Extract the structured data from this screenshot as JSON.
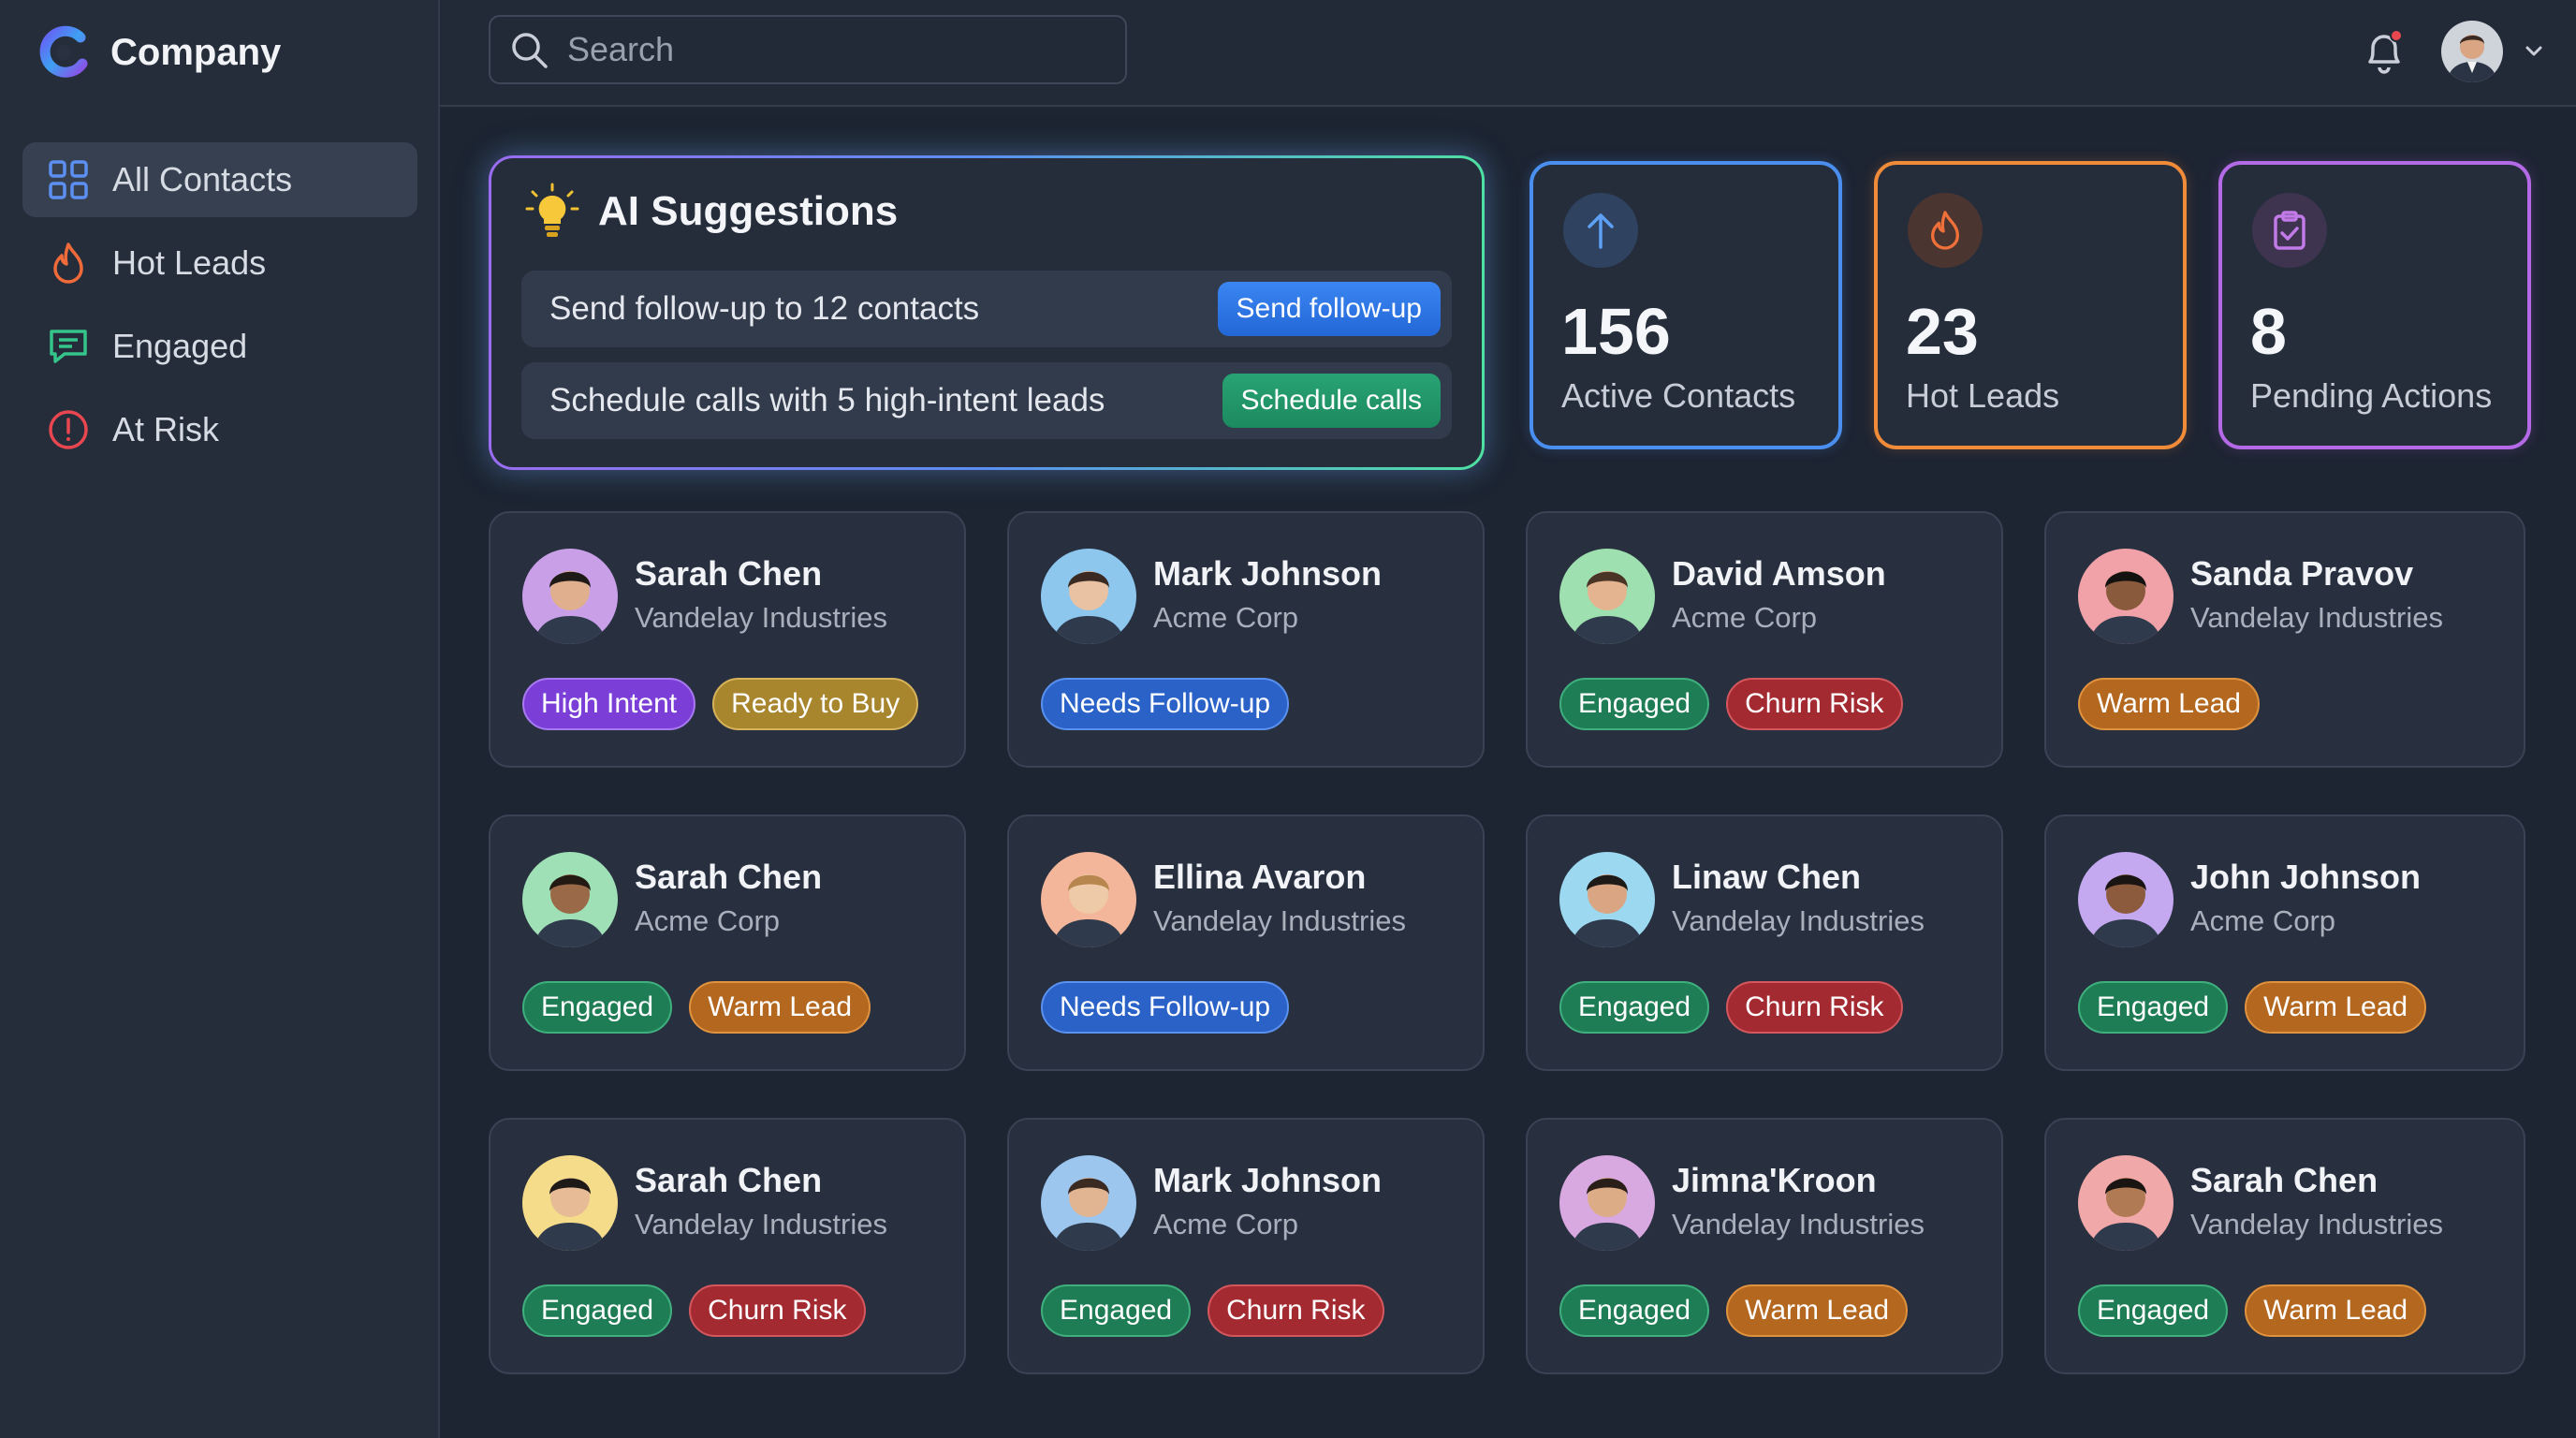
{
  "brand": {
    "name": "Company"
  },
  "sidebar": {
    "items": [
      {
        "label": "All Contacts",
        "icon": "grid-icon",
        "active": true
      },
      {
        "label": "Hot Leads",
        "icon": "flame-icon",
        "active": false
      },
      {
        "label": "Engaged",
        "icon": "chat-icon",
        "active": false
      },
      {
        "label": "At Risk",
        "icon": "alert-icon",
        "active": false
      }
    ]
  },
  "search": {
    "placeholder": "Search",
    "value": ""
  },
  "header": {
    "notification_dot": true
  },
  "ai": {
    "title": "AI Suggestions",
    "suggestions": [
      {
        "text": "Send follow-up to 12 contacts",
        "action": "Send follow-up"
      },
      {
        "text": "Schedule calls with 5 high-intent leads",
        "action": "Schedule calls"
      }
    ]
  },
  "stats": [
    {
      "value": "156",
      "label": "Active Contacts",
      "icon": "arrow-up-icon",
      "color": "#4a8ff0"
    },
    {
      "value": "23",
      "label": "Hot Leads",
      "icon": "flame-icon",
      "color": "#f08b3a"
    },
    {
      "value": "8",
      "label": "Pending Actions",
      "icon": "clipboard-check-icon",
      "color": "#b46ae6"
    }
  ],
  "contacts": [
    {
      "name": "Sarah Chen",
      "company": "Vandelay Industries",
      "tags": [
        "High Intent",
        "Ready to Buy"
      ]
    },
    {
      "name": "Mark Johnson",
      "company": "Acme Corp",
      "tags": [
        "Needs Follow-up"
      ]
    },
    {
      "name": "David Amson",
      "company": "Acme Corp",
      "tags": [
        "Engaged",
        "Churn Risk"
      ]
    },
    {
      "name": "Sanda Pravov",
      "company": "Vandelay Industries",
      "tags": [
        "Warm Lead"
      ]
    },
    {
      "name": "Sarah Chen",
      "company": "Acme Corp",
      "tags": [
        "Engaged",
        "Warm Lead"
      ]
    },
    {
      "name": "Ellina Avaron",
      "company": "Vandelay Industries",
      "tags": [
        "Needs Follow-up"
      ]
    },
    {
      "name": "Linaw Chen",
      "company": "Vandelay Industries",
      "tags": [
        "Engaged",
        "Churn Risk"
      ]
    },
    {
      "name": "John Johnson",
      "company": "Acme Corp",
      "tags": [
        "Engaged",
        "Warm Lead"
      ]
    },
    {
      "name": "Sarah Chen",
      "company": "Vandelay Industries",
      "tags": [
        "Engaged",
        "Churn Risk"
      ]
    },
    {
      "name": "Mark Johnson",
      "company": "Acme Corp",
      "tags": [
        "Engaged",
        "Churn Risk"
      ]
    },
    {
      "name": "Jimna'Kroon",
      "company": "Vandelay Industries",
      "tags": [
        "Engaged",
        "Warm Lead"
      ]
    },
    {
      "name": "Sarah Chen",
      "company": "Vandelay Industries",
      "tags": [
        "Engaged",
        "Warm Lead"
      ]
    }
  ],
  "tag_colors": {
    "High Intent": {
      "bg": "#7b3fd8",
      "border": "#a77af0"
    },
    "Ready to Buy": {
      "bg": "#a8862e",
      "border": "#d6b25a"
    },
    "Needs Follow-up": {
      "bg": "#2a62c8",
      "border": "#5a90ee"
    },
    "Engaged": {
      "bg": "#1f7d55",
      "border": "#3fb07d"
    },
    "Churn Risk": {
      "bg": "#a32a31",
      "border": "#d4575d"
    },
    "Warm Lead": {
      "bg": "#b3671f",
      "border": "#e0923f"
    }
  }
}
